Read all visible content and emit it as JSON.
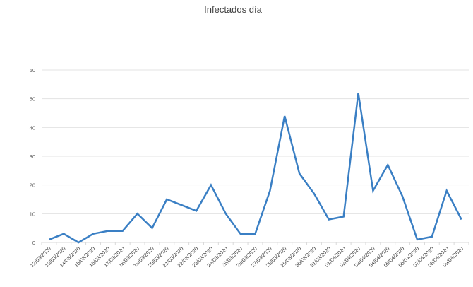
{
  "chart_data": {
    "type": "line",
    "title": "Infectados día",
    "xlabel": "",
    "ylabel": "",
    "ylim": [
      0,
      60
    ],
    "yticks": [
      0,
      10,
      20,
      30,
      40,
      50,
      60
    ],
    "grid": true,
    "legend": "none",
    "categories": [
      "12/03/2020",
      "13/03/2020",
      "14/03/2020",
      "15/03/2020",
      "16/03/2020",
      "17/03/2020",
      "18/03/2020",
      "19/03/2020",
      "20/03/2020",
      "21/03/2020",
      "22/03/2020",
      "23/03/2020",
      "24/03/2020",
      "25/03/2020",
      "26/03/2020",
      "27/03/2020",
      "28/03/2020",
      "29/03/2020",
      "30/03/2020",
      "31/03/2020",
      "01/04/2020",
      "02/04/2020",
      "03/04/2020",
      "04/04/2020",
      "05/04/2020",
      "06/04/2020",
      "07/04/2020",
      "08/04/2020",
      "09/04/2020"
    ],
    "series": [
      {
        "name": "Infectados día",
        "color": "#3a7fc4",
        "values": [
          1,
          3,
          0,
          3,
          4,
          4,
          10,
          5,
          15,
          13,
          11,
          20,
          10,
          3,
          3,
          18,
          44,
          24,
          17,
          8,
          9,
          52,
          18,
          27,
          16,
          1,
          2,
          18,
          8
        ]
      }
    ]
  }
}
